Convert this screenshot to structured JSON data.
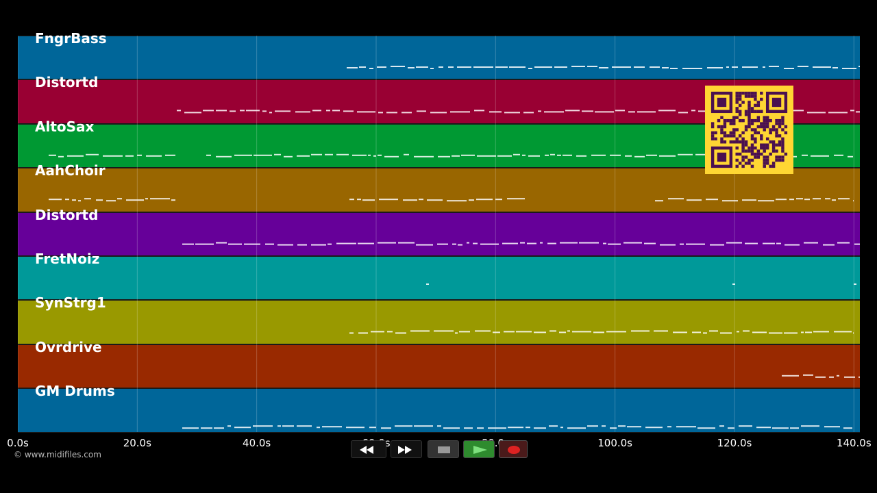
{
  "tracks": [
    {
      "name": "FngrBass",
      "color": "#006699"
    },
    {
      "name": "Distortd",
      "color": "#990033"
    },
    {
      "name": "AltoSax",
      "color": "#009933"
    },
    {
      "name": "AahChoir",
      "color": "#996600"
    },
    {
      "name": "Distortd",
      "color": "#660099"
    },
    {
      "name": "FretNoiz",
      "color": "#009999"
    },
    {
      "name": "SynStrg1",
      "color": "#999900"
    },
    {
      "name": "Ovrdrive",
      "color": "#992900"
    },
    {
      "name": "GM Drums",
      "color": "#006699"
    }
  ],
  "timeline": {
    "ticks": [
      "0.0s",
      "20.0s",
      "40.0s",
      "60.0s",
      "80.0s",
      "100.0s",
      "120.0s",
      "140.0s"
    ],
    "duration_seconds": 141
  },
  "copyright": "© www.midifiles.com",
  "transport": {
    "rewind": "rewind-icon",
    "fast_forward": "fast-forward-icon",
    "stop": "stop-icon",
    "play": "play-icon",
    "record": "record-icon",
    "play_color": "#2e8b2e",
    "record_color": "#dd2222"
  },
  "qr_code": {
    "color_fg": "#4a1050",
    "color_bg": "#ffd633"
  }
}
